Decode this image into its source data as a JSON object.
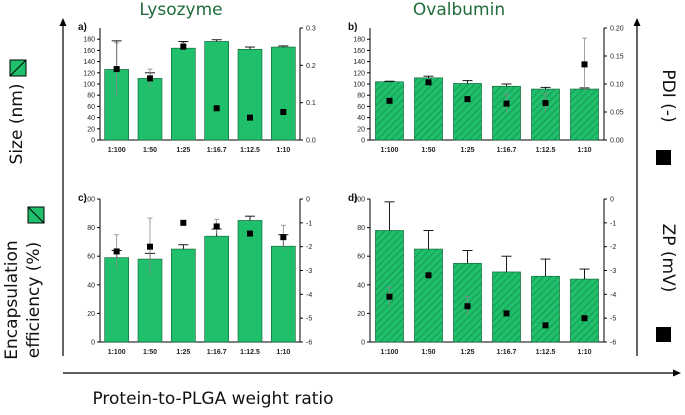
{
  "figure": {
    "column_titles": [
      "Lysozyme",
      "Ovalbumin"
    ],
    "left_labels": {
      "size": "Size (nm)",
      "ee_line1": "Encapsulation",
      "ee_line2": "efficiency (%)"
    },
    "right_labels": {
      "pdi": "PDI (-)",
      "zp": "ZP (mV)"
    },
    "x_title": "Protein-to-PLGA weight ratio",
    "colors": {
      "bar": "#1fbf6b",
      "bar_edge": "#0e5f33",
      "marker": "#000000",
      "title_green": "#1f6b3a"
    }
  },
  "chart_data": [
    {
      "panel": "a)",
      "type": "bar",
      "protein": "Lysozyme",
      "hatched": false,
      "categories": [
        "1:100",
        "1:50",
        "1:25",
        "1:16.7",
        "1:12.5",
        "1:10"
      ],
      "left_axis": {
        "label": "Size (nm)",
        "ylim": [
          0,
          200
        ],
        "ticks": [
          0,
          20,
          40,
          60,
          80,
          100,
          120,
          140,
          160,
          180
        ]
      },
      "bar_values": [
        126,
        110,
        164,
        176,
        162,
        166
      ],
      "bar_errors": [
        51,
        10,
        12,
        3,
        4,
        2
      ],
      "right_axis": {
        "label": "PDI (-)",
        "ylim": [
          0,
          0.3
        ],
        "ticks": [
          0.0,
          0.1,
          0.2,
          0.3
        ]
      },
      "marker_values": [
        0.19,
        0.165,
        0.25,
        0.085,
        0.06,
        0.075
      ],
      "marker_errors": [
        0.07,
        0.025,
        0.01,
        0,
        0,
        0
      ]
    },
    {
      "panel": "b)",
      "type": "bar",
      "protein": "Ovalbumin",
      "hatched": true,
      "categories": [
        "1:100",
        "1:50",
        "1:25",
        "1:16.7",
        "1:12.5",
        "1:10"
      ],
      "left_axis": {
        "label": "Size (nm)",
        "ylim": [
          0,
          200
        ],
        "ticks": [
          0,
          20,
          40,
          60,
          80,
          100,
          120,
          140,
          160,
          180
        ]
      },
      "bar_values": [
        104,
        111,
        101,
        96,
        91,
        91
      ],
      "bar_errors": [
        1,
        3,
        5,
        4,
        3,
        2
      ],
      "right_axis": {
        "label": "PDI (-)",
        "ylim": [
          0,
          0.2
        ],
        "ticks": [
          0.0,
          0.05,
          0.1,
          0.15,
          0.2
        ]
      },
      "marker_values": [
        0.07,
        0.103,
        0.073,
        0.065,
        0.066,
        0.135
      ],
      "marker_errors": [
        0,
        0.005,
        0,
        0.017,
        0.017,
        0.047
      ]
    },
    {
      "panel": "c)",
      "type": "bar",
      "protein": "Lysozyme",
      "hatched": false,
      "categories": [
        "1:100",
        "1:50",
        "1:25",
        "1:16.7",
        "1:12.5",
        "1:10"
      ],
      "left_axis": {
        "label": "Encapsulation efficiency (%)",
        "ylim": [
          0,
          100
        ],
        "ticks": [
          0,
          20,
          40,
          60,
          80,
          100
        ]
      },
      "bar_values": [
        59,
        58,
        65,
        74,
        85,
        67
      ],
      "bar_errors": [
        5,
        4,
        3,
        5,
        3,
        8
      ],
      "right_axis": {
        "label": "ZP (mV)",
        "ylim": [
          -6,
          0
        ],
        "ticks": [
          0,
          -1,
          -2,
          -3,
          -4,
          -5,
          -6
        ]
      },
      "marker_values": [
        -2.2,
        -2.0,
        -1.0,
        -1.15,
        -1.45,
        -1.6
      ],
      "marker_errors": [
        0.7,
        1.2,
        0,
        0.3,
        0,
        0.5
      ]
    },
    {
      "panel": "d)",
      "type": "bar",
      "protein": "Ovalbumin",
      "hatched": true,
      "categories": [
        "1:100",
        "1:50",
        "1:25",
        "1:16.7",
        "1:12.5",
        "1:10"
      ],
      "left_axis": {
        "label": "Encapsulation efficiency (%)",
        "ylim": [
          0,
          100
        ],
        "ticks": [
          0,
          20,
          40,
          60,
          80,
          100
        ]
      },
      "bar_values": [
        78,
        65,
        55,
        49,
        46,
        44
      ],
      "bar_errors": [
        20,
        13,
        9,
        11,
        12,
        7
      ],
      "right_axis": {
        "label": "ZP (mV)",
        "ylim": [
          -6,
          0
        ],
        "ticks": [
          0,
          -1,
          -2,
          -3,
          -4,
          -5,
          -6
        ]
      },
      "marker_values": [
        -4.1,
        -3.2,
        -4.5,
        -4.8,
        -5.3,
        -5.0
      ],
      "marker_errors": [
        0.4,
        0,
        0.4,
        0,
        0,
        0
      ]
    }
  ]
}
